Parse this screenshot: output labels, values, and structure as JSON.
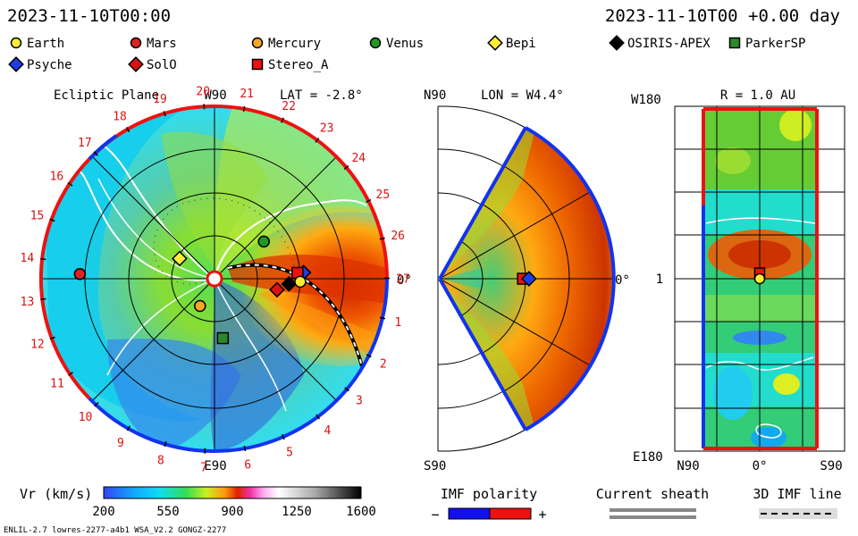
{
  "header": {
    "date_left": "2023-11-10T00:00",
    "date_right": "2023-11-10T00 +0.00 day"
  },
  "legend": {
    "items": [
      {
        "label": "Earth",
        "color": "#ffee33",
        "shape": "circle"
      },
      {
        "label": "Mars",
        "color": "#dd2222",
        "shape": "circle"
      },
      {
        "label": "Mercury",
        "color": "#f5a623",
        "shape": "circle"
      },
      {
        "label": "Venus",
        "color": "#229922",
        "shape": "circle"
      },
      {
        "label": "Bepi",
        "color": "#ffee33",
        "shape": "diamond"
      },
      {
        "label": "OSIRIS-APEX",
        "color": "#000000",
        "shape": "diamond"
      },
      {
        "label": "ParkerSP",
        "color": "#2a8a2a",
        "shape": "square"
      },
      {
        "label": "Psyche",
        "color": "#1f3de6",
        "shape": "diamond"
      },
      {
        "label": "SolO",
        "color": "#dd1111",
        "shape": "diamond"
      },
      {
        "label": "Stereo_A",
        "color": "#ee1111",
        "shape": "square"
      }
    ]
  },
  "panels": {
    "ecliptic": {
      "title": "Ecliptic Plane",
      "lat_label": "LAT = -2.8°",
      "top_label": "W90",
      "bottom_label": "E90",
      "right_label": "0°",
      "carrington_days": [
        "1",
        "2",
        "3",
        "4",
        "5",
        "6",
        "7",
        "8",
        "9",
        "10",
        "11",
        "12",
        "13",
        "14",
        "15",
        "16",
        "17",
        "18",
        "19",
        "20",
        "21",
        "22",
        "23",
        "24",
        "25",
        "26",
        "27"
      ]
    },
    "meridional": {
      "lon_label": "LON = W4.4°",
      "top_label": "N90",
      "bottom_label": "S90",
      "right_label": "0°"
    },
    "latlon": {
      "r_label": "R = 1.0 AU",
      "top_left_label": "W180",
      "bottom_left_label": "E180",
      "mid_left_label": "1",
      "x_labels": [
        "N90",
        "0°",
        "S90"
      ]
    }
  },
  "colorbar": {
    "label": "Vr (km/s)",
    "ticks": [
      "200",
      "550",
      "900",
      "1250",
      "1600"
    ]
  },
  "imf": {
    "title": "IMF polarity",
    "minus": "−",
    "plus": "+",
    "neg_color": "#1111ee",
    "pos_color": "#ee1111"
  },
  "current_sheath": {
    "title": "Current sheath"
  },
  "imf_line": {
    "title": "3D IMF line"
  },
  "footer": {
    "left": "ENLIL-2.7 lowres-2277-a4b1 WSA_V2.2 GONGZ-2277"
  },
  "chart_data": [
    {
      "type": "heatmap",
      "title": "Ecliptic Plane",
      "variable": "Vr (km/s)",
      "value_range": [
        200,
        1600
      ],
      "markers": [
        {
          "name": "Earth",
          "angle_deg": -2,
          "r_au": 1.0
        },
        {
          "name": "Stereo_A",
          "angle_deg": 4,
          "r_au": 0.97
        },
        {
          "name": "Psyche",
          "angle_deg": 4,
          "r_au": 1.04
        },
        {
          "name": "OSIRIS-APEX",
          "angle_deg": -4,
          "r_au": 0.87
        },
        {
          "name": "SolO",
          "angle_deg": -10,
          "r_au": 0.74
        },
        {
          "name": "Venus",
          "angle_deg": 37,
          "r_au": 0.72
        },
        {
          "name": "Bepi",
          "angle_deg": 150,
          "r_au": 0.47
        },
        {
          "name": "Mercury",
          "angle_deg": -118,
          "r_au": 0.36
        },
        {
          "name": "ParkerSP",
          "angle_deg": -82,
          "r_au": 0.7
        },
        {
          "name": "Mars",
          "angle_deg": 178,
          "r_au": 1.57
        }
      ]
    },
    {
      "type": "heatmap",
      "title": "Meridional plane",
      "variable": "Vr (km/s)",
      "lon": "W4.4°",
      "markers": [
        {
          "name": "Stereo_A",
          "lat_deg": 0,
          "r_au": 0.97
        },
        {
          "name": "Psyche",
          "lat_deg": 0,
          "r_au": 1.04
        }
      ]
    },
    {
      "type": "heatmap",
      "title": "R = 1.0 AU",
      "variable": "Vr (km/s)",
      "markers": [
        {
          "name": "Earth",
          "lat_deg": 0,
          "lon_deg": 0
        },
        {
          "name": "Stereo_A",
          "lat_deg": 0,
          "lon_deg": 4
        }
      ]
    }
  ]
}
